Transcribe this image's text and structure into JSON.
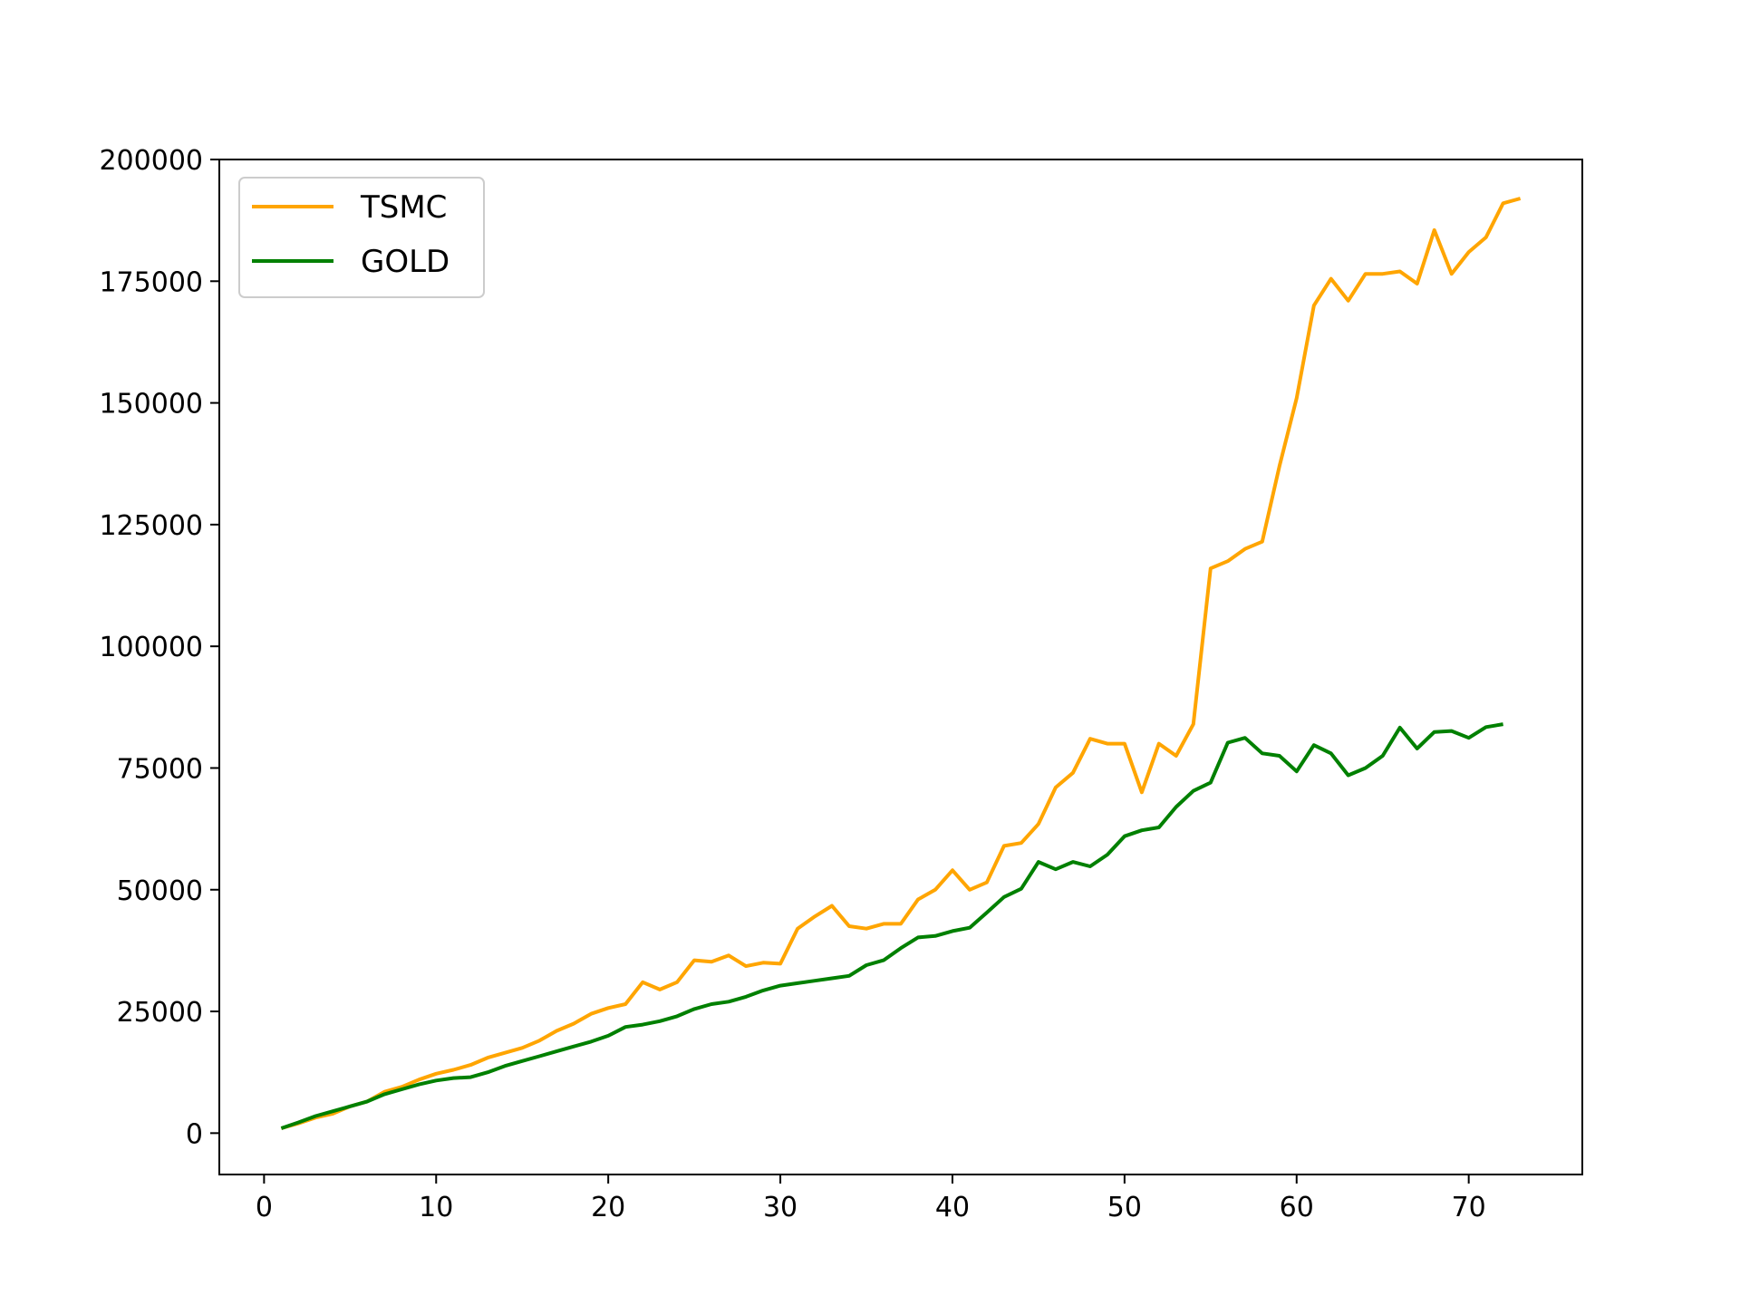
{
  "chart_data": {
    "type": "line",
    "title": "",
    "xlabel": "",
    "ylabel": "",
    "xlim": [
      -2.6,
      76.6
    ],
    "ylim": [
      -8500,
      200000
    ],
    "xticks": [
      0,
      10,
      20,
      30,
      40,
      50,
      60,
      70
    ],
    "yticks": [
      0,
      25000,
      50000,
      75000,
      100000,
      125000,
      150000,
      175000,
      200000
    ],
    "grid": false,
    "legend_position": "upper-left",
    "series": [
      {
        "name": "TSMC",
        "color": "#FFA500",
        "x": [
          1,
          2,
          3,
          4,
          5,
          6,
          7,
          8,
          9,
          10,
          11,
          12,
          13,
          14,
          15,
          16,
          17,
          18,
          19,
          20,
          21,
          22,
          23,
          24,
          25,
          26,
          27,
          28,
          29,
          30,
          31,
          32,
          33,
          34,
          35,
          36,
          37,
          38,
          39,
          40,
          41,
          42,
          43,
          44,
          45,
          46,
          47,
          48,
          49,
          50,
          51,
          52,
          53,
          54,
          55,
          56,
          57,
          58,
          59,
          60,
          61,
          62,
          63,
          64,
          65,
          66,
          67,
          68,
          69,
          70,
          71,
          72,
          73
        ],
        "y": [
          1000,
          2000,
          3200,
          4000,
          5500,
          6500,
          8500,
          9500,
          11000,
          12200,
          13000,
          14000,
          15500,
          16500,
          17500,
          19000,
          21000,
          22500,
          24500,
          25700,
          26500,
          31000,
          29500,
          31000,
          35500,
          35200,
          36500,
          34300,
          35000,
          34800,
          42000,
          44500,
          46700,
          42500,
          42000,
          43000,
          43000,
          48000,
          50000,
          54000,
          50000,
          51500,
          59000,
          59600,
          63500,
          71000,
          74000,
          81000,
          80000,
          80000,
          70000,
          80000,
          77500,
          84000,
          116000,
          117500,
          120000,
          121500,
          137000,
          151000,
          170000,
          175500,
          171000,
          176500,
          176500,
          177000,
          174500,
          185500,
          176500,
          181000,
          184000,
          191000,
          192000
        ]
      },
      {
        "name": "GOLD",
        "color": "#008000",
        "x": [
          1,
          2,
          3,
          4,
          5,
          6,
          7,
          8,
          9,
          10,
          11,
          12,
          13,
          14,
          15,
          16,
          17,
          18,
          19,
          20,
          21,
          22,
          23,
          24,
          25,
          26,
          27,
          28,
          29,
          30,
          31,
          32,
          33,
          34,
          35,
          36,
          37,
          38,
          39,
          40,
          41,
          42,
          43,
          44,
          45,
          46,
          47,
          48,
          49,
          50,
          51,
          52,
          53,
          54,
          55,
          56,
          57,
          58,
          59,
          60,
          61,
          62,
          63,
          64,
          65,
          66,
          67,
          68,
          69,
          70,
          71,
          72
        ],
        "y": [
          1000,
          2200,
          3500,
          4500,
          5500,
          6500,
          8000,
          9000,
          10000,
          10800,
          11300,
          11500,
          12500,
          13800,
          14800,
          15800,
          16800,
          17800,
          18800,
          20000,
          21800,
          22300,
          23000,
          24000,
          25500,
          26500,
          27000,
          28000,
          29300,
          30300,
          30800,
          31300,
          31800,
          32300,
          34500,
          35500,
          38000,
          40200,
          40500,
          41500,
          42200,
          45300,
          48500,
          50200,
          55700,
          54200,
          55700,
          54800,
          57200,
          61000,
          62200,
          62800,
          67000,
          70300,
          72000,
          80200,
          81200,
          78000,
          77500,
          74300,
          79700,
          78000,
          73500,
          75000,
          77500,
          83300,
          79000,
          82400,
          82600,
          81200,
          83400,
          84000
        ]
      }
    ]
  }
}
